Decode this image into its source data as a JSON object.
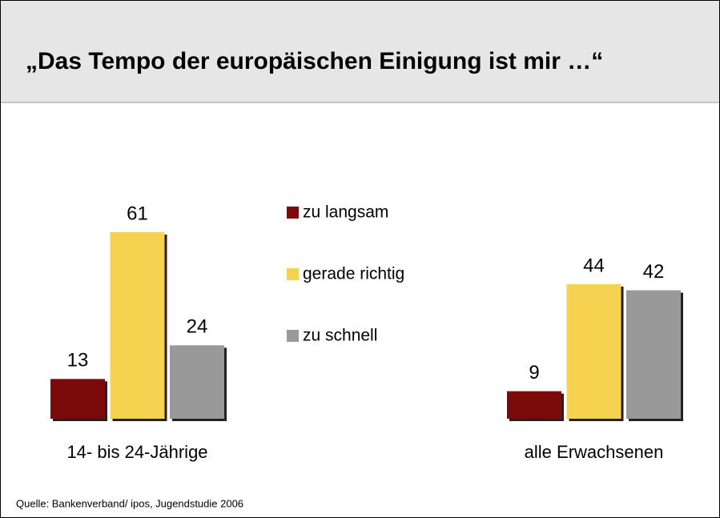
{
  "chart_data": {
    "type": "bar",
    "title": "„Das Tempo der europäischen Einigung ist mir …“",
    "categories": [
      "14- bis 24-Jährige",
      "alle Erwachsenen"
    ],
    "series": [
      {
        "name": "zu langsam",
        "color": "#7b0a0a",
        "values": [
          13,
          9
        ]
      },
      {
        "name": "gerade richtig",
        "color": "#f5d350",
        "values": [
          61,
          44
        ]
      },
      {
        "name": "zu schnell",
        "color": "#999999",
        "values": [
          24,
          42
        ]
      }
    ],
    "source": "Quelle: Bankenverband/ ipos, Jugendstudie 2006"
  }
}
